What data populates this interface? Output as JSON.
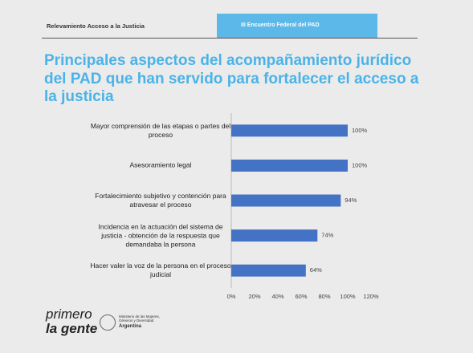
{
  "header": {
    "left": "Relevamiento Acceso a la Justicia",
    "right": "III Encuentro Federal del PAD"
  },
  "footer": {
    "brand_line1": "primero",
    "brand_line2": "la gente",
    "ministry": "Ministerio de las Mujeres, Géneros y Diversidad",
    "country": "Argentina"
  },
  "chart_data": {
    "type": "hbar",
    "title": "Principales aspectos del acompañamiento jurídico del PAD que han servido para fortalecer el acceso a la justicia",
    "categories": [
      "Mayor comprensión de las etapas o partes del proceso",
      "Asesoramiento legal",
      "Fortalecimiento subjetivo y contención para atravesar el proceso",
      "Incidencia en la actuación del sistema de justicia - obtención de la respuesta que demandaba la persona",
      "Hacer valer la voz de la persona en el proceso judicial"
    ],
    "values": [
      100,
      100,
      94,
      74,
      64
    ],
    "value_labels": [
      "100%",
      "100%",
      "94%",
      "74%",
      "64%"
    ],
    "color": "#4472c4",
    "xlim": [
      0,
      120
    ],
    "xticks": [
      {
        "value": 0,
        "label": "0%"
      },
      {
        "value": 20,
        "label": "20%"
      },
      {
        "value": 40,
        "label": "40%"
      },
      {
        "value": 60,
        "label": "60%"
      },
      {
        "value": 80,
        "label": "80%"
      },
      {
        "value": 100,
        "label": "100%"
      },
      {
        "value": 120,
        "label": "120%"
      }
    ],
    "grid": false
  }
}
